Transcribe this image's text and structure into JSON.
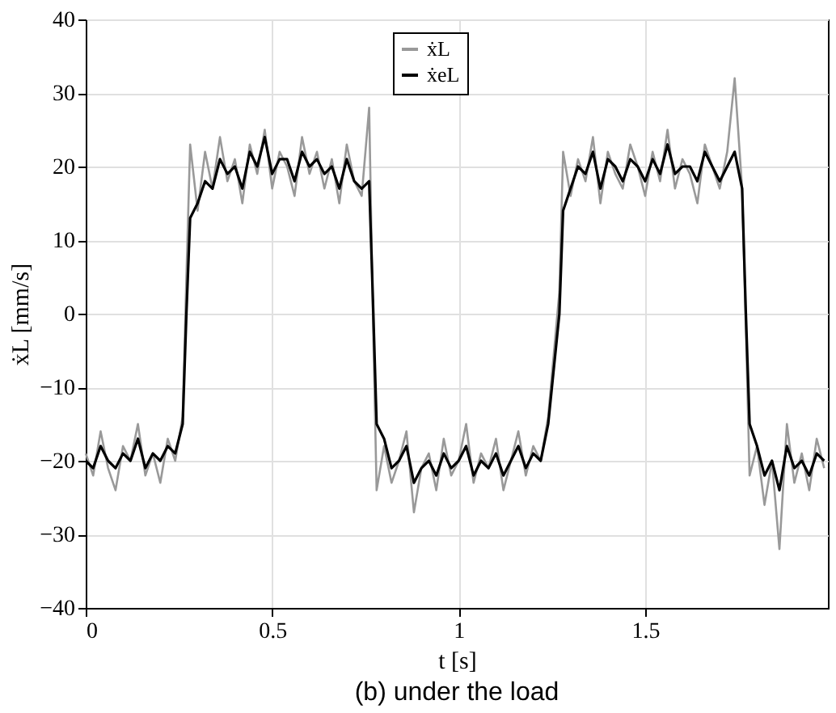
{
  "chart_data": {
    "type": "line",
    "xlabel": "t [s]",
    "ylabel": "ẋL [mm/s]",
    "annotations": [
      "(b) under the load"
    ],
    "x": [
      0,
      0.02,
      0.04,
      0.06,
      0.08,
      0.1,
      0.12,
      0.14,
      0.16,
      0.18,
      0.2,
      0.22,
      0.24,
      0.26,
      0.27,
      0.28,
      0.3,
      0.32,
      0.34,
      0.36,
      0.38,
      0.4,
      0.42,
      0.44,
      0.46,
      0.48,
      0.5,
      0.52,
      0.54,
      0.56,
      0.58,
      0.6,
      0.62,
      0.64,
      0.66,
      0.68,
      0.7,
      0.72,
      0.74,
      0.76,
      0.77,
      0.78,
      0.8,
      0.82,
      0.84,
      0.86,
      0.88,
      0.9,
      0.92,
      0.94,
      0.96,
      0.98,
      1.0,
      1.02,
      1.04,
      1.06,
      1.08,
      1.1,
      1.12,
      1.14,
      1.16,
      1.18,
      1.2,
      1.22,
      1.24,
      1.27,
      1.28,
      1.3,
      1.32,
      1.34,
      1.36,
      1.38,
      1.4,
      1.42,
      1.44,
      1.46,
      1.48,
      1.5,
      1.52,
      1.54,
      1.56,
      1.58,
      1.6,
      1.62,
      1.64,
      1.66,
      1.68,
      1.7,
      1.72,
      1.74,
      1.76,
      1.77,
      1.78,
      1.8,
      1.82,
      1.84,
      1.86,
      1.88,
      1.9,
      1.92,
      1.94,
      1.96,
      1.98
    ],
    "series": [
      {
        "name": "ẋL",
        "color": "#999999",
        "values": [
          -19,
          -22,
          -16,
          -21,
          -24,
          -18,
          -20,
          -15,
          -22,
          -19,
          -23,
          -17,
          -20,
          -14,
          5,
          23,
          14,
          22,
          17,
          24,
          18,
          21,
          15,
          23,
          19,
          25,
          17,
          22,
          20,
          16,
          24,
          19,
          22,
          17,
          21,
          15,
          23,
          18,
          16,
          28,
          0,
          -24,
          -18,
          -23,
          -20,
          -16,
          -27,
          -21,
          -19,
          -24,
          -17,
          -22,
          -20,
          -15,
          -23,
          -19,
          -21,
          -17,
          -24,
          -20,
          -16,
          -22,
          -18,
          -20,
          -14,
          3,
          22,
          16,
          21,
          18,
          24,
          15,
          22,
          19,
          17,
          23,
          20,
          16,
          22,
          18,
          25,
          17,
          21,
          19,
          15,
          23,
          20,
          17,
          22,
          32,
          17,
          -2,
          -22,
          -18,
          -26,
          -20,
          -32,
          -15,
          -23,
          -19,
          -24,
          -17,
          -21
        ]
      },
      {
        "name": "ẋeL",
        "color": "#000000",
        "values": [
          -20,
          -21,
          -18,
          -20,
          -21,
          -19,
          -20,
          -17,
          -21,
          -19,
          -20,
          -18,
          -19,
          -15,
          0,
          13,
          15,
          18,
          17,
          21,
          19,
          20,
          17,
          22,
          20,
          24,
          19,
          21,
          21,
          18,
          22,
          20,
          21,
          19,
          20,
          17,
          21,
          18,
          17,
          18,
          2,
          -15,
          -17,
          -21,
          -20,
          -18,
          -23,
          -21,
          -20,
          -22,
          -19,
          -21,
          -20,
          -18,
          -22,
          -20,
          -21,
          -19,
          -22,
          -20,
          -18,
          -21,
          -19,
          -20,
          -15,
          0,
          14,
          17,
          20,
          19,
          22,
          17,
          21,
          20,
          18,
          21,
          20,
          18,
          21,
          19,
          23,
          19,
          20,
          20,
          18,
          22,
          20,
          18,
          20,
          22,
          17,
          0,
          -15,
          -18,
          -22,
          -20,
          -24,
          -18,
          -21,
          -20,
          -22,
          -19,
          -20
        ]
      }
    ],
    "xlim": [
      0,
      1.99
    ],
    "xticks": [
      0,
      0.5,
      1,
      1.5
    ],
    "ylim": [
      -40,
      40
    ],
    "yticks": [
      -40,
      -30,
      -20,
      -10,
      0,
      10,
      20,
      30,
      40
    ],
    "grid": true,
    "legend": "top",
    "marker": "none",
    "line_style": "solid"
  }
}
